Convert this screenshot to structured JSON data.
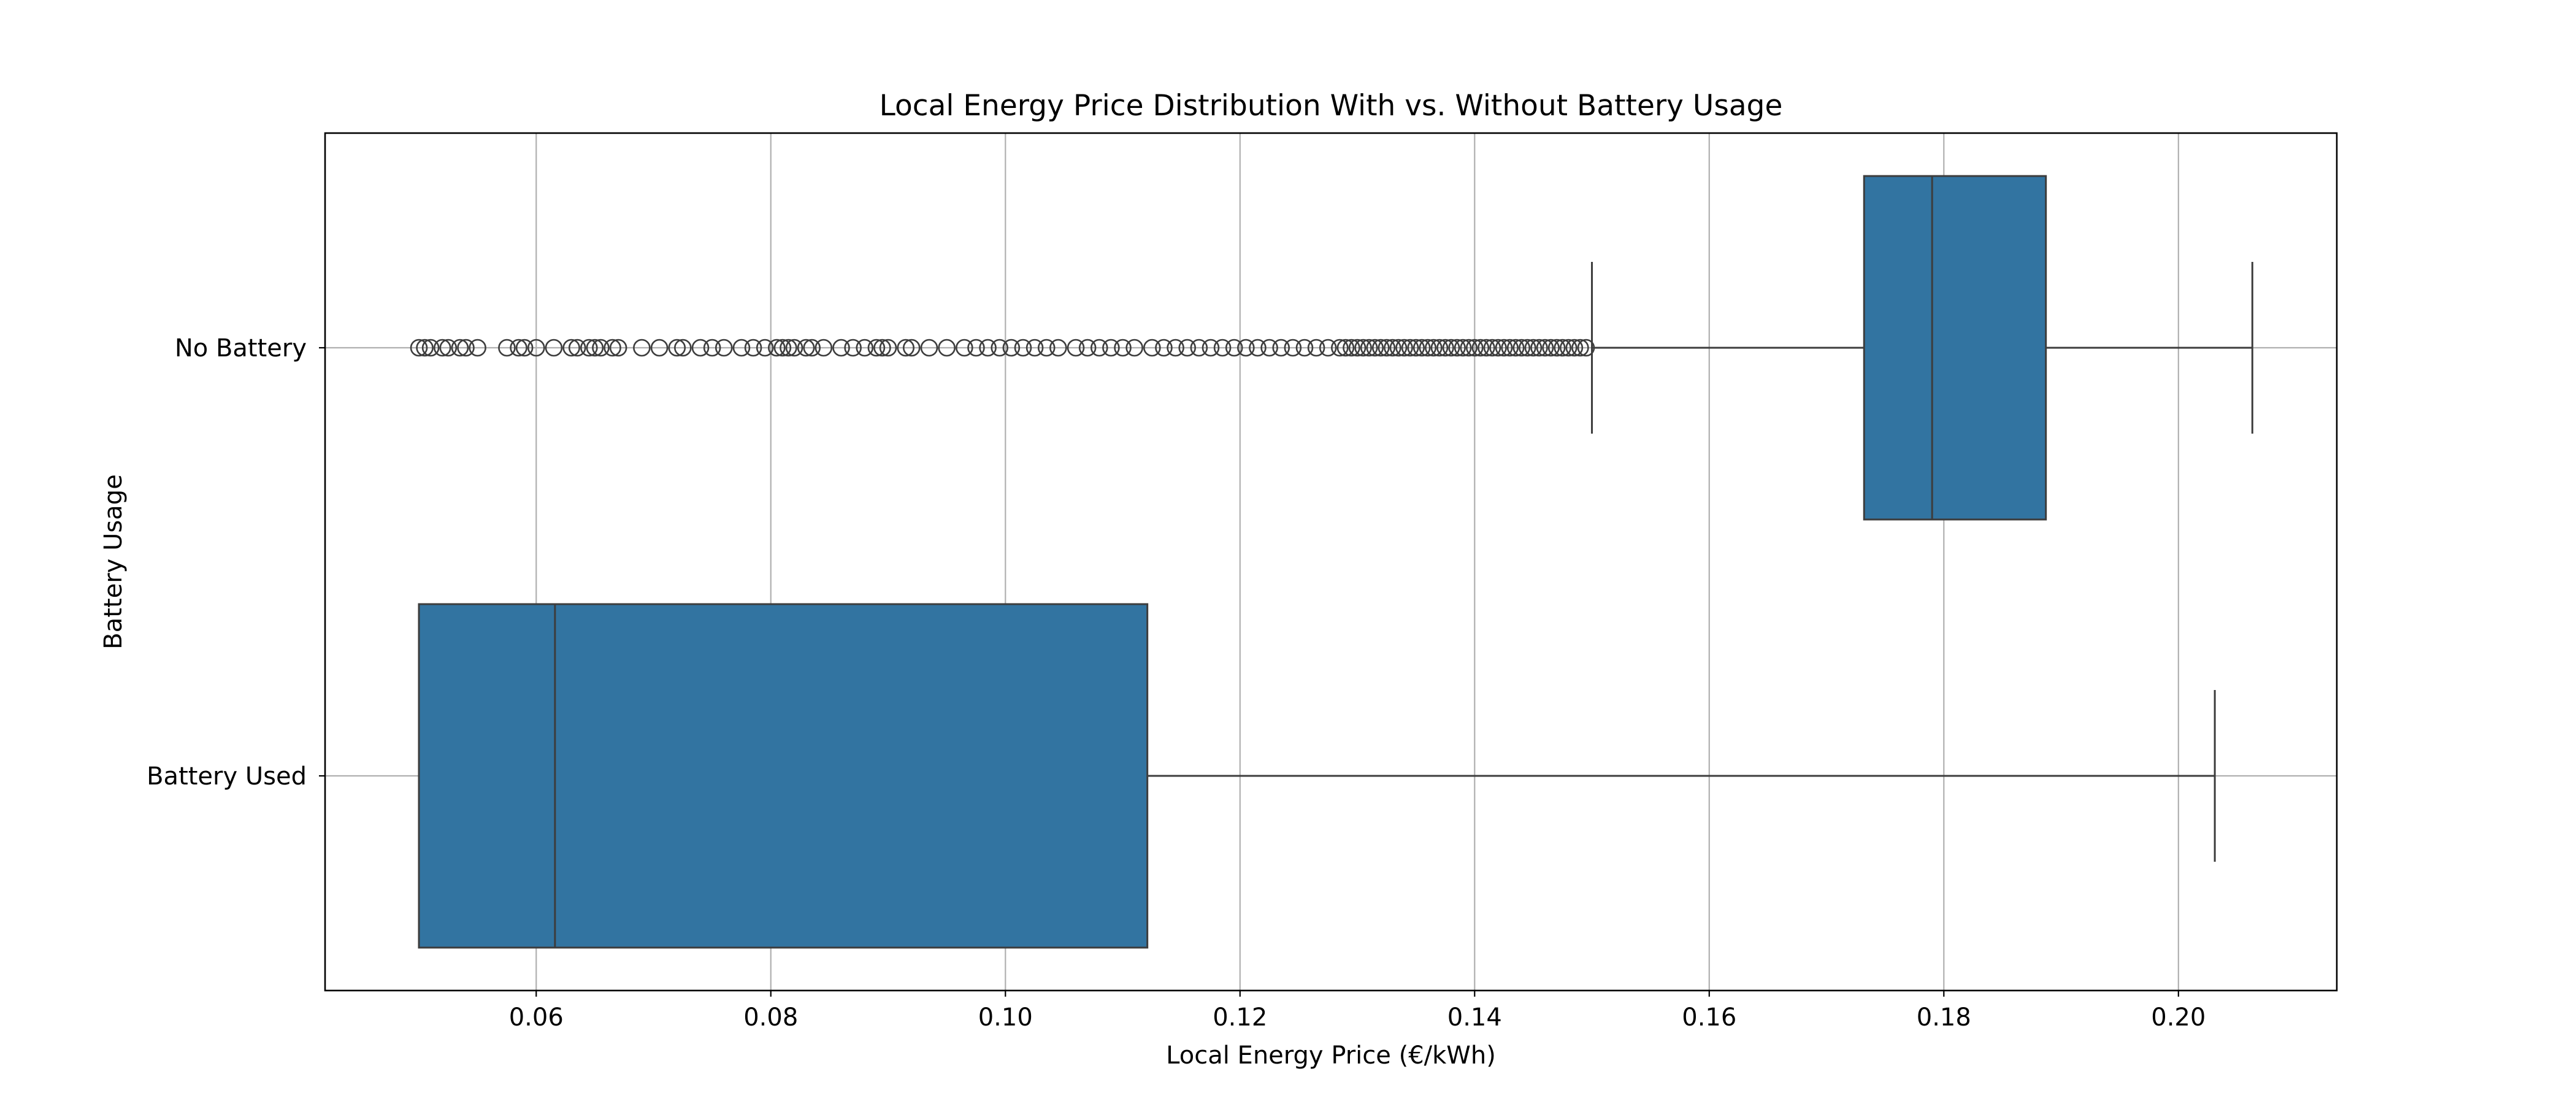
{
  "chart_data": {
    "type": "boxplot",
    "title": "Local Energy Price Distribution With vs. Without Battery Usage",
    "xlabel": "Local Energy Price (€/kWh)",
    "ylabel": "Battery Usage",
    "xlim": [
      0.042,
      0.2135
    ],
    "x_ticks": [
      0.06,
      0.08,
      0.1,
      0.12,
      0.14,
      0.16,
      0.18,
      0.2
    ],
    "x_tick_labels": [
      "0.06",
      "0.08",
      "0.10",
      "0.12",
      "0.14",
      "0.16",
      "0.18",
      "0.20"
    ],
    "categories": [
      "No Battery",
      "Battery Used"
    ],
    "grid": true,
    "box_color": "#3274a1",
    "line_color": "#3d3d3d",
    "series": [
      {
        "category": "No Battery",
        "whisker_low": 0.15,
        "q1": 0.1732,
        "median": 0.179,
        "q3": 0.1887,
        "whisker_high": 0.2063,
        "outliers": [
          0.05,
          0.0505,
          0.051,
          0.052,
          0.0525,
          0.0535,
          0.054,
          0.055,
          0.0575,
          0.0585,
          0.059,
          0.06,
          0.0615,
          0.063,
          0.0635,
          0.0645,
          0.065,
          0.0655,
          0.0665,
          0.067,
          0.069,
          0.0705,
          0.072,
          0.0725,
          0.074,
          0.075,
          0.076,
          0.0775,
          0.0785,
          0.0795,
          0.0805,
          0.081,
          0.0815,
          0.082,
          0.083,
          0.0835,
          0.0845,
          0.086,
          0.087,
          0.088,
          0.089,
          0.0895,
          0.09,
          0.0915,
          0.092,
          0.0935,
          0.095,
          0.0965,
          0.0975,
          0.0985,
          0.0995,
          0.1005,
          0.1015,
          0.1025,
          0.1035,
          0.1045,
          0.106,
          0.107,
          0.108,
          0.109,
          0.11,
          0.111,
          0.1125,
          0.1135,
          0.1145,
          0.1155,
          0.1165,
          0.1175,
          0.1185,
          0.1195,
          0.1205,
          0.1215,
          0.1225,
          0.1235,
          0.1245,
          0.1255,
          0.1265,
          0.1275,
          0.1285,
          0.129,
          0.1295,
          0.13,
          0.1305,
          0.131,
          0.1315,
          0.132,
          0.1325,
          0.133,
          0.1335,
          0.134,
          0.1345,
          0.135,
          0.1355,
          0.136,
          0.1365,
          0.137,
          0.1375,
          0.138,
          0.1385,
          0.139,
          0.1395,
          0.14,
          0.1405,
          0.141,
          0.1415,
          0.142,
          0.1425,
          0.143,
          0.1435,
          0.144,
          0.1445,
          0.145,
          0.1455,
          0.146,
          0.1465,
          0.147,
          0.1475,
          0.148,
          0.1485,
          0.149,
          0.1495
        ]
      },
      {
        "category": "Battery Used",
        "whisker_low": 0.05,
        "q1": 0.05,
        "median": 0.0616,
        "q3": 0.1121,
        "whisker_high": 0.2031,
        "outliers": []
      }
    ]
  }
}
